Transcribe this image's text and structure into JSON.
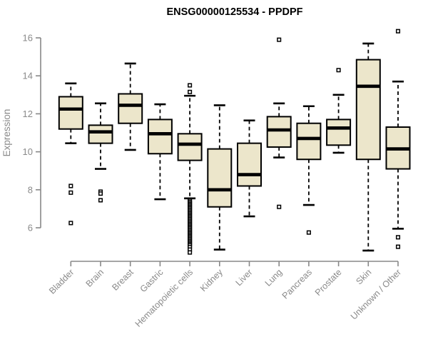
{
  "title": "ENSG00000125534 - PPDPF",
  "colors": {
    "background": "#ffffff",
    "box_fill": "#ECE6CB",
    "box_stroke": "#000000",
    "median": "#000000",
    "whisker": "#000000",
    "axis": "#888888",
    "tick_label": "#8a8a8a",
    "title": "#000000",
    "outlier_fill": "#ffffff",
    "outlier_stroke": "#000000"
  },
  "chart_data": {
    "type": "boxplot",
    "title": "ENSG00000125534 - PPDPF",
    "xlabel": "",
    "ylabel": "Expression",
    "ylim": [
      4.4,
      16.6
    ],
    "yticks": [
      6,
      8,
      10,
      12,
      14,
      16
    ],
    "grid": false,
    "legend": "none",
    "categories": [
      "Bladder",
      "Brain",
      "Breast",
      "Gastric",
      "Hematopoietic cells",
      "Kidney",
      "Liver",
      "Lung",
      "Pancreas",
      "Prostate",
      "Skin",
      "Unknown / Other"
    ],
    "series": [
      {
        "name": "Bladder",
        "whisker_low": 10.45,
        "q1": 11.2,
        "median": 12.25,
        "q3": 12.9,
        "whisker_high": 13.6,
        "outliers": [
          8.2,
          7.85,
          6.25
        ]
      },
      {
        "name": "Brain",
        "whisker_low": 9.1,
        "q1": 10.45,
        "median": 11.05,
        "q3": 11.4,
        "whisker_high": 12.55,
        "outliers": [
          7.9,
          7.8,
          7.45
        ]
      },
      {
        "name": "Breast",
        "whisker_low": 10.1,
        "q1": 11.5,
        "median": 12.45,
        "q3": 13.05,
        "whisker_high": 14.65,
        "outliers": []
      },
      {
        "name": "Gastric",
        "whisker_low": 7.5,
        "q1": 9.9,
        "median": 10.95,
        "q3": 11.7,
        "whisker_high": 12.5,
        "outliers": []
      },
      {
        "name": "Hematopoietic cells",
        "whisker_low": 7.55,
        "q1": 9.55,
        "median": 10.4,
        "q3": 10.95,
        "whisker_high": 12.95,
        "outliers": [
          13.5,
          13.15,
          7.45,
          7.38,
          7.31,
          7.24,
          7.17,
          7.1,
          7.03,
          6.96,
          6.89,
          6.82,
          6.75,
          6.68,
          6.61,
          6.54,
          6.47,
          6.4,
          6.33,
          6.26,
          6.19,
          6.12,
          6.05,
          5.98,
          5.91,
          5.84,
          5.77,
          5.7,
          5.63,
          5.56,
          5.49,
          5.42,
          5.35,
          5.28,
          5.21,
          5.14,
          5.07,
          4.98,
          4.85,
          4.7
        ]
      },
      {
        "name": "Kidney",
        "whisker_low": 4.85,
        "q1": 7.1,
        "median": 8.0,
        "q3": 10.15,
        "whisker_high": 12.45,
        "outliers": []
      },
      {
        "name": "Liver",
        "whisker_low": 6.6,
        "q1": 8.2,
        "median": 8.8,
        "q3": 10.45,
        "whisker_high": 11.65,
        "outliers": []
      },
      {
        "name": "Lung",
        "whisker_low": 9.7,
        "q1": 10.25,
        "median": 11.15,
        "q3": 11.85,
        "whisker_high": 12.55,
        "outliers": [
          15.9,
          7.1
        ]
      },
      {
        "name": "Pancreas",
        "whisker_low": 7.2,
        "q1": 9.6,
        "median": 10.7,
        "q3": 11.5,
        "whisker_high": 12.4,
        "outliers": [
          5.75
        ]
      },
      {
        "name": "Prostate",
        "whisker_low": 9.95,
        "q1": 10.35,
        "median": 11.25,
        "q3": 11.7,
        "whisker_high": 13.0,
        "outliers": [
          14.3
        ]
      },
      {
        "name": "Skin",
        "whisker_low": 4.8,
        "q1": 9.6,
        "median": 13.45,
        "q3": 14.85,
        "whisker_high": 15.7,
        "outliers": []
      },
      {
        "name": "Unknown / Other",
        "whisker_low": 5.95,
        "q1": 9.1,
        "median": 10.15,
        "q3": 11.3,
        "whisker_high": 13.7,
        "outliers": [
          16.35,
          5.5,
          5.0
        ]
      }
    ]
  }
}
